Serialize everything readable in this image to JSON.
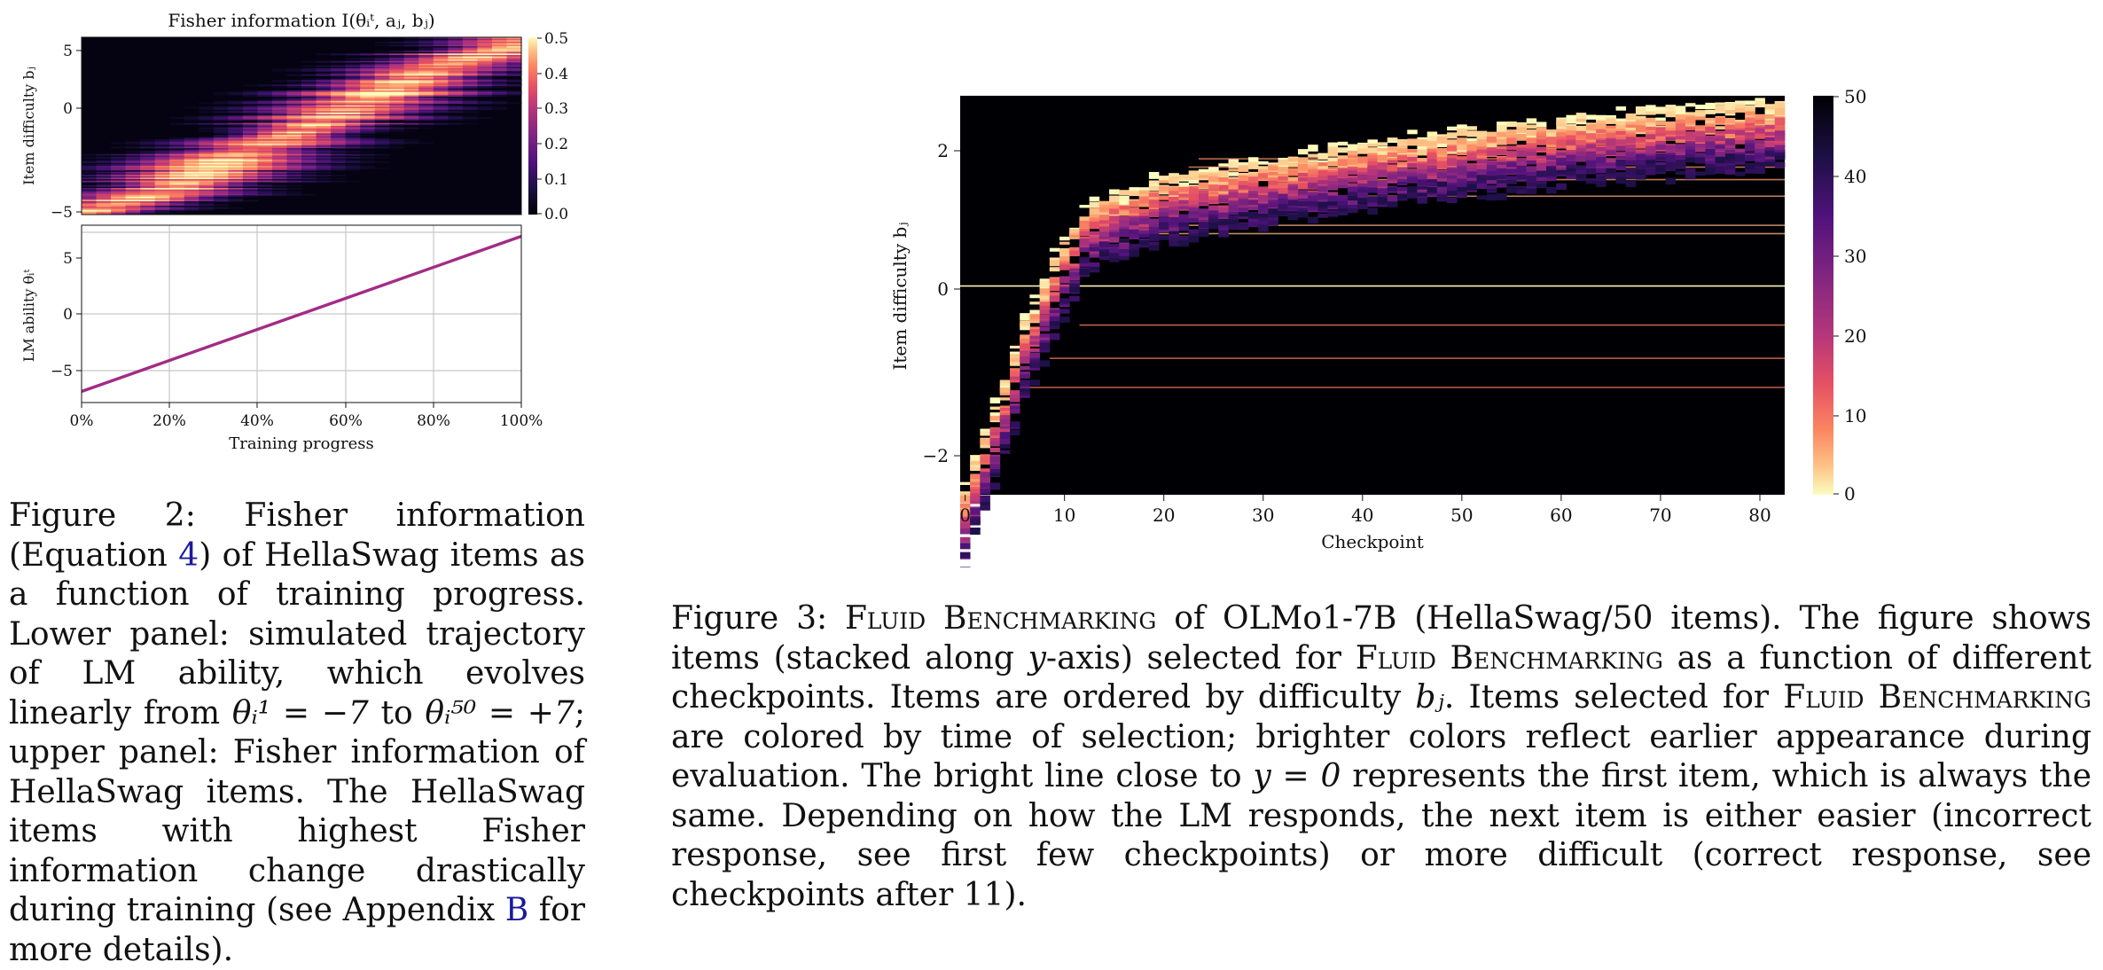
{
  "fig2": {
    "top_panel": {
      "title": "Fisher information I(θᵢᵗ, aⱼ, bⱼ)",
      "ylabel": "Item difficulty bⱼ",
      "yticks": [
        "5",
        "0",
        "−5"
      ],
      "colorbar_ticks": [
        "0.5",
        "0.4",
        "0.3",
        "0.2",
        "0.1",
        "0.0"
      ]
    },
    "bottom_panel": {
      "ylabel": "LM ability θᵢᵗ",
      "xlabel": "Training progress",
      "yticks": [
        "5",
        "0",
        "−5"
      ],
      "xticks": [
        "0%",
        "20%",
        "40%",
        "60%",
        "80%",
        "100%"
      ]
    },
    "caption": {
      "label": "Figure 2:",
      "text_a": " Fisher information (Equation ",
      "ref_eq": "4",
      "text_b": ") of HellaSwag items as a function of training progress. Lower panel: simulated trajectory of LM ability, which evolves linearly from ",
      "theta_start": "θᵢ¹ = −7",
      "text_c": " to ",
      "theta_end": "θᵢ⁵⁰ = +7",
      "text_d": "; upper panel: Fisher information of HellaSwag items. The HellaSwag items with highest Fisher information change drastically during training (see Appendix ",
      "ref_app": "B",
      "text_e": " for more details)."
    }
  },
  "fig3": {
    "ylabel": "Item difficulty bⱼ",
    "xlabel": "Checkpoint",
    "yticks": [
      "2",
      "0",
      "−2"
    ],
    "xticks": [
      "0",
      "10",
      "20",
      "30",
      "40",
      "50",
      "60",
      "70",
      "80"
    ],
    "colorbar_ticks": [
      "50",
      "40",
      "30",
      "20",
      "10",
      "0"
    ],
    "caption": {
      "label": "Figure 3:",
      "text_a": " ",
      "sc1": "Fluid Benchmarking",
      "text_b": " of OLMo1-7B (HellaSwag/50 items). The figure shows items (stacked along ",
      "y_var": "y",
      "text_c": "-axis) selected for ",
      "sc2": "Fluid Benchmarking",
      "text_d": " as a function of different checkpoints. Items are ordered by difficulty ",
      "b_var": "bⱼ",
      "text_e": ". Items selected for ",
      "sc3": "Fluid Benchmarking",
      "text_f": " are colored by time of selection; brighter colors reflect earlier appearance during evaluation. The bright line close to ",
      "y_eq": "y = 0",
      "text_g": " represents the first item, which is always the same. Depending on how the LM responds, the next item is either easier (incorrect response, see first few checkpoints) or more difficult (correct response, see checkpoints after 11)."
    }
  },
  "chart_data": [
    {
      "type": "heatmap",
      "title": "Fisher information I(θᵢᵗ, aⱼ, bⱼ)",
      "xlabel": "",
      "ylabel": "Item difficulty bⱼ",
      "x": [
        0,
        100
      ],
      "ylim": [
        -5.3,
        6.0
      ],
      "color_range": [
        0.0,
        0.5
      ],
      "colormap": "magma",
      "band_center": [
        [
          0,
          -5.2
        ],
        [
          20,
          -3.8
        ],
        [
          35,
          -1.5
        ],
        [
          50,
          0.0
        ],
        [
          65,
          2.0
        ],
        [
          80,
          4.0
        ],
        [
          100,
          5.5
        ]
      ]
    },
    {
      "type": "line",
      "xlabel": "Training progress",
      "ylabel": "LM ability θᵢᵗ",
      "x": [
        0,
        100
      ],
      "xlim": [
        0,
        100
      ],
      "ylim": [
        -8,
        8
      ],
      "grid": true,
      "series": [
        {
          "values": [
            -7,
            7
          ],
          "color": "#a32b86"
        }
      ]
    },
    {
      "type": "heatmap",
      "xlabel": "Checkpoint",
      "ylabel": "Item difficulty bⱼ",
      "xlim": [
        -0.5,
        82.5
      ],
      "ylim": [
        -2.5,
        2.3
      ],
      "color_range": [
        0,
        50
      ],
      "colormap": "magma_r",
      "first_item_difficulty": 0.02,
      "frontier": [
        [
          0,
          -2.4
        ],
        [
          2,
          -1.7
        ],
        [
          4,
          -1.1
        ],
        [
          6,
          -0.4
        ],
        [
          8,
          0.1
        ],
        [
          10,
          0.6
        ],
        [
          12,
          0.9
        ],
        [
          15,
          1.1
        ],
        [
          20,
          1.3
        ],
        [
          30,
          1.5
        ],
        [
          40,
          1.7
        ],
        [
          50,
          1.85
        ],
        [
          60,
          2.0
        ],
        [
          70,
          2.1
        ],
        [
          82,
          2.2
        ]
      ]
    }
  ]
}
